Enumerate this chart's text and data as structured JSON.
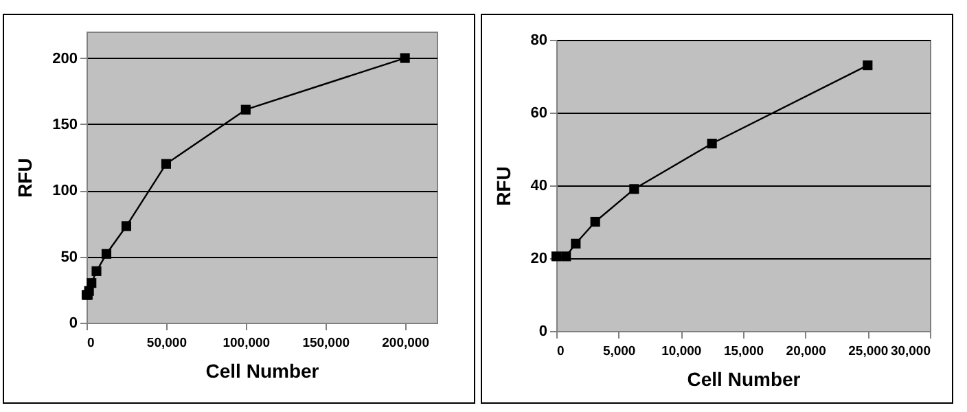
{
  "chart_data": [
    {
      "type": "line",
      "xlabel": "Cell Number",
      "ylabel": "RFU",
      "x": [
        0,
        781,
        1562,
        3125,
        6250,
        12500,
        25000,
        50000,
        100000,
        200000
      ],
      "series": [
        {
          "color": "#000000",
          "values": [
            21,
            21,
            24,
            30,
            39,
            52,
            73,
            120,
            161,
            200
          ]
        }
      ],
      "xlim": [
        0,
        220000
      ],
      "xticks": [
        {
          "value": 0,
          "label": "0"
        },
        {
          "value": 50000,
          "label": "50,000"
        },
        {
          "value": 100000,
          "label": "100,000"
        },
        {
          "value": 150000,
          "label": "150,000"
        },
        {
          "value": 200000,
          "label": "200,000"
        }
      ],
      "ylim": [
        0,
        220
      ],
      "yticks": [
        0,
        50,
        100,
        150,
        200
      ],
      "grid": "y",
      "marker": "square",
      "line_style": "solid"
    },
    {
      "type": "line",
      "xlabel": "Cell Number",
      "ylabel": "RFU",
      "x": [
        0,
        781,
        1562,
        3125,
        6250,
        12500,
        25000
      ],
      "series": [
        {
          "color": "#000000",
          "values": [
            20.5,
            20.5,
            24,
            30,
            39,
            51.5,
            73
          ]
        }
      ],
      "xlim": [
        0,
        30000
      ],
      "xticks": [
        {
          "value": 0,
          "label": "0"
        },
        {
          "value": 5000,
          "label": "5,000"
        },
        {
          "value": 10000,
          "label": "10,000"
        },
        {
          "value": 15000,
          "label": "15,000"
        },
        {
          "value": 20000,
          "label": "20,000"
        },
        {
          "value": 25000,
          "label": "25,000"
        },
        {
          "value": 30000,
          "label": "30,000"
        }
      ],
      "ylim": [
        0,
        80
      ],
      "yticks": [
        0,
        20,
        40,
        60,
        80
      ],
      "grid": "y",
      "marker": "square",
      "line_style": "solid"
    }
  ]
}
